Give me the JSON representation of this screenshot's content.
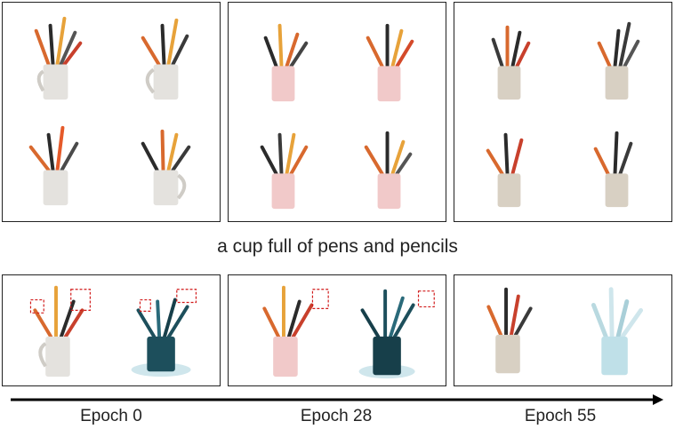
{
  "caption": "a cup full of pens and pencils",
  "epochs": [
    "Epoch 0",
    "Epoch 28",
    "Epoch 55"
  ],
  "colors": {
    "mug_white": "#e4e2de",
    "cup_pink": "#f1c9c9",
    "cup_beige": "#d8d0c3",
    "normal_teal": "#1d4f5c",
    "normal_pale": "#cfe6ec",
    "highlight_red": "#d11a1a"
  }
}
